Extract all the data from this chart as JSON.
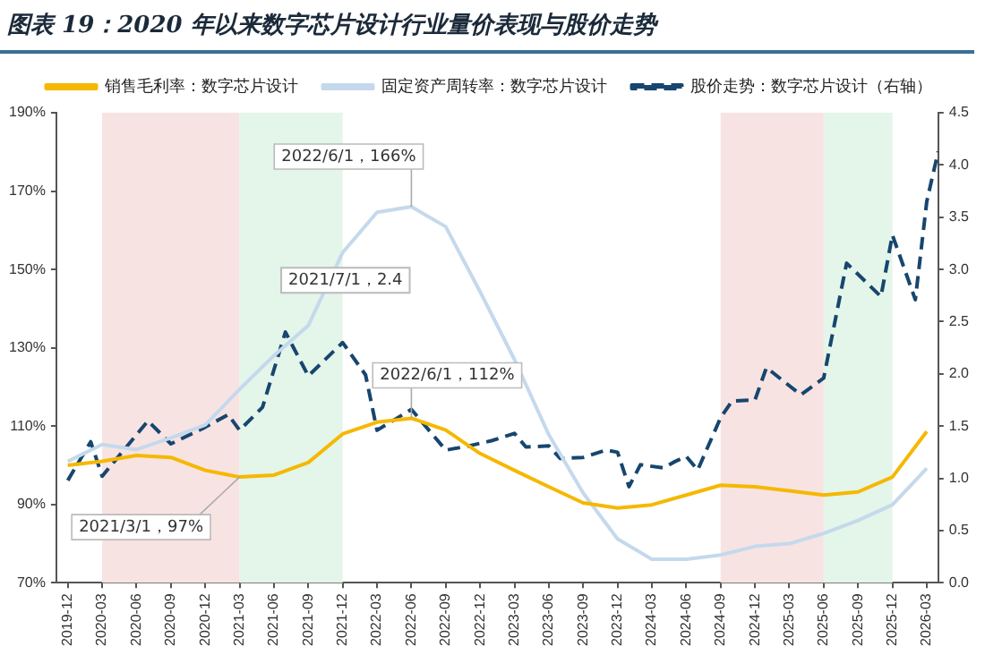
{
  "chart_data": {
    "type": "line",
    "title": "图表 19：2020 年以来数字芯片设计行业量价表现与股价走势",
    "xlim": [
      "2019-11",
      "2026-04"
    ],
    "xticks": [
      "2019-12",
      "2020-03",
      "2020-06",
      "2020-09",
      "2020-12",
      "2021-03",
      "2021-06",
      "2021-09",
      "2021-12",
      "2022-03",
      "2022-06",
      "2022-09",
      "2022-12",
      "2023-03",
      "2023-06",
      "2023-09",
      "2023-12",
      "2024-03",
      "2024-06",
      "2024-09",
      "2024-12",
      "2025-03",
      "2025-06",
      "2025-09",
      "2025-12",
      "2026-03"
    ],
    "ylim": [
      70,
      190
    ],
    "yticks": [
      {
        "value": 70,
        "label": "70%"
      },
      {
        "value": 90,
        "label": "90%"
      },
      {
        "value": 110,
        "label": "110%"
      },
      {
        "value": 130,
        "label": "130%"
      },
      {
        "value": 150,
        "label": "150%"
      },
      {
        "value": 170,
        "label": "170%"
      },
      {
        "value": 190,
        "label": "190%"
      }
    ],
    "y2lim": [
      0,
      4.5
    ],
    "y2ticks": [
      {
        "value": 0,
        "label": "0.0"
      },
      {
        "value": 0.5,
        "label": "0.5"
      },
      {
        "value": 1,
        "label": "1.0"
      },
      {
        "value": 1.5,
        "label": "1.5"
      },
      {
        "value": 2,
        "label": "2.0"
      },
      {
        "value": 2.5,
        "label": "2.5"
      },
      {
        "value": 3,
        "label": "3.0"
      },
      {
        "value": 3.5,
        "label": "3.5"
      },
      {
        "value": 4,
        "label": "4.0"
      },
      {
        "value": 4.5,
        "label": "4.5"
      }
    ],
    "grid": false,
    "legend": "top",
    "marker": "none",
    "series": [
      {
        "name": "销售毛利率：数字芯片设计",
        "color": "#f5b800",
        "line_style": "solid",
        "x": [
          "2019-12",
          "2020-03",
          "2020-06",
          "2020-09",
          "2020-12",
          "2021-03",
          "2021-06",
          "2021-09",
          "2021-12",
          "2022-03",
          "2022-06",
          "2022-09",
          "2022-12",
          "2023-03",
          "2023-06",
          "2023-09",
          "2023-12",
          "2024-03",
          "2024-06",
          "2024-09",
          "2024-12",
          "2025-03",
          "2025-06",
          "2025-09",
          "2025-12",
          "2026-03"
        ],
        "values": [
          100,
          101,
          102.5,
          102,
          98.7,
          97,
          97.5,
          100.7,
          108,
          111,
          112,
          109,
          103,
          98.7,
          94.5,
          90.4,
          89.1,
          89.9,
          92.4,
          94.9,
          94.5,
          93.5,
          92.4,
          93.2,
          97,
          108.6
        ]
      },
      {
        "name": "固定资产周转率：数字芯片设计",
        "color": "#c5d9ec",
        "line_style": "solid",
        "x": [
          "2019-12",
          "2020-03",
          "2020-06",
          "2020-09",
          "2020-12",
          "2021-03",
          "2021-06",
          "2021-09",
          "2021-12",
          "2022-03",
          "2022-06",
          "2022-09",
          "2022-12",
          "2023-03",
          "2023-06",
          "2023-09",
          "2023-12",
          "2024-03",
          "2024-06",
          "2024-09",
          "2024-12",
          "2025-03",
          "2025-06",
          "2025-09",
          "2025-12",
          "2026-03"
        ],
        "values": [
          101,
          105.3,
          104,
          107,
          110.3,
          119.4,
          128,
          135.7,
          154.3,
          164.6,
          166,
          160.9,
          144.3,
          127,
          107.8,
          92.9,
          81.2,
          76,
          76,
          77.1,
          79.3,
          80,
          82.6,
          85.9,
          89.9,
          99.2
        ]
      },
      {
        "name": "股价走势：数字芯片设计（右轴）",
        "color": "#17466e",
        "line_style": "dashed",
        "axis": "y2",
        "x": [
          "2019-12",
          "2020-02",
          "2020-03",
          "2020-07",
          "2020-09",
          "2020-12",
          "2021-02",
          "2021-03",
          "2021-05",
          "2021-07",
          "2021-09",
          "2021-12",
          "2022-02",
          "2022-03",
          "2022-06",
          "2022-09",
          "2022-11",
          "2023-01",
          "2023-03",
          "2023-04",
          "2023-06",
          "2023-07",
          "2023-09",
          "2023-11",
          "2023-12",
          "2024-01",
          "2024-02",
          "2024-04",
          "2024-05",
          "2024-06",
          "2024-07",
          "2024-09",
          "2024-10",
          "2024-12",
          "2025-01",
          "2025-04",
          "2025-06",
          "2025-08",
          "2025-11",
          "2025-12",
          "2026-02",
          "2026-03",
          "2026-04"
        ],
        "values": [
          0.98,
          1.35,
          1.02,
          1.55,
          1.33,
          1.49,
          1.61,
          1.46,
          1.68,
          2.4,
          1.98,
          2.3,
          1.99,
          1.46,
          1.66,
          1.27,
          1.31,
          1.36,
          1.43,
          1.3,
          1.31,
          1.19,
          1.2,
          1.27,
          1.25,
          0.92,
          1.13,
          1.1,
          1.16,
          1.21,
          1.08,
          1.58,
          1.74,
          1.75,
          2.06,
          1.8,
          1.96,
          3.06,
          2.74,
          3.33,
          2.71,
          3.65,
          4.13
        ]
      }
    ],
    "bands": [
      {
        "axis": "x",
        "from": "2020-03",
        "to": "2021-03",
        "color": "#f8e3e3"
      },
      {
        "axis": "x",
        "from": "2021-03",
        "to": "2021-12",
        "color": "#e4f5ea"
      },
      {
        "axis": "x",
        "from": "2024-09",
        "to": "2025-06",
        "color": "#f8e3e3"
      },
      {
        "axis": "x",
        "from": "2025-06",
        "to": "2025-12",
        "color": "#e4f5ea"
      }
    ],
    "annotations": [
      {
        "text": "2022/6/1，166%",
        "x": "2022-06",
        "y": 166
      },
      "2021/7/1，2.4",
      {
        "text": "2022/6/1，112%",
        "x": "2022-06",
        "y": 112
      },
      {
        "text": "2021/3/1，97%",
        "x": "2021-03",
        "y": 97
      }
    ]
  }
}
